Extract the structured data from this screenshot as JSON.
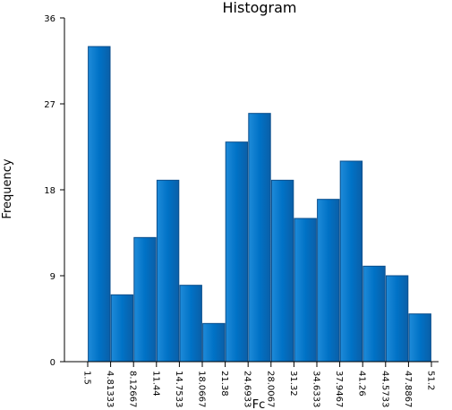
{
  "chart_data": {
    "type": "bar",
    "title": "Histogram",
    "xlabel": "Fc",
    "ylabel": "Frequency",
    "ylim": [
      0,
      36
    ],
    "yticks": [
      "0",
      "9",
      "18",
      "27",
      "36"
    ],
    "bin_edges": [
      "1.5",
      "4.81333",
      "8.12667",
      "11.44",
      "14.7533",
      "18.0667",
      "21.38",
      "24.6933",
      "28.0067",
      "31.32",
      "34.6333",
      "37.9467",
      "41.26",
      "44.5733",
      "47.8867",
      "51.2"
    ],
    "values": [
      33,
      7,
      13,
      19,
      8,
      4,
      23,
      26,
      19,
      15,
      17,
      21,
      10,
      9,
      5
    ],
    "bar_color": "#0072C6",
    "bar_edge_color": "#0A4E8C",
    "grid": false
  }
}
